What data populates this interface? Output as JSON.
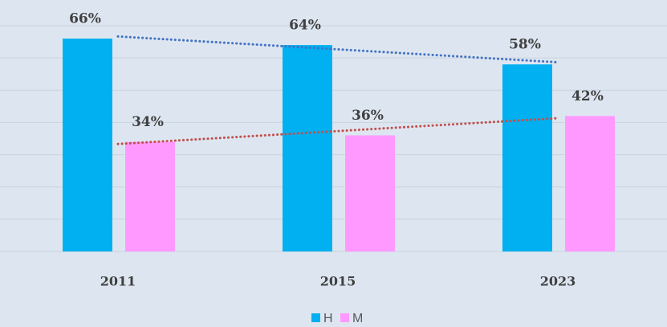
{
  "chart_data": {
    "type": "bar",
    "categories": [
      "2011",
      "2015",
      "2023"
    ],
    "series": [
      {
        "name": "H",
        "color": "#00b0f0",
        "values": [
          66,
          64,
          58
        ],
        "value_labels": [
          "66%",
          "64%",
          "58%"
        ],
        "trendline": "linear",
        "trendline_color": "#4472c4"
      },
      {
        "name": "M",
        "color": "#ff99ff",
        "values": [
          34,
          36,
          42
        ],
        "value_labels": [
          "34%",
          "36%",
          "42%"
        ],
        "trendline": "linear",
        "trendline_color": "#c0504d"
      }
    ],
    "ylim": [
      0,
      70
    ],
    "yticks": [
      0,
      10,
      20,
      30,
      40,
      50,
      60,
      70
    ],
    "grid": true,
    "legend": "bottom"
  }
}
